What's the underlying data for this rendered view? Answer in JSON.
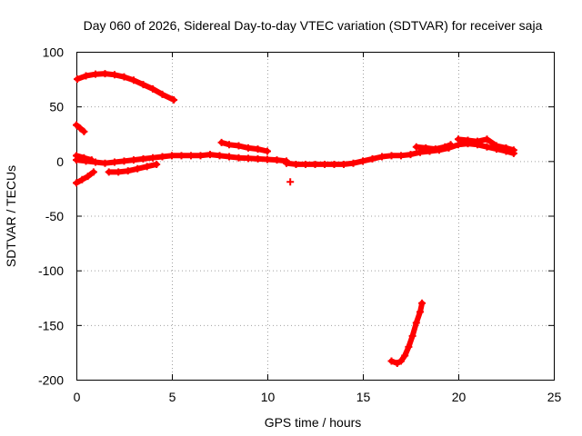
{
  "chart_data": {
    "type": "scatter",
    "title": "Day 060 of 2026, Sidereal Day-to-day VTEC variation (SDTVAR) for receiver saja",
    "xlabel": "GPS time / hours",
    "ylabel": "SDTVAR / TECUs",
    "xlim": [
      0,
      25
    ],
    "ylim": [
      -200,
      100
    ],
    "xticks": [
      0,
      5,
      10,
      15,
      20,
      25
    ],
    "yticks": [
      -200,
      -150,
      -100,
      -50,
      0,
      50,
      100
    ],
    "xtick_labels": [
      "0",
      "5",
      "10",
      "15",
      "20",
      "25"
    ],
    "ytick_labels": [
      "-200",
      "-150",
      "-100",
      "-50",
      "0",
      "50",
      "100"
    ],
    "grid": true,
    "marker_color": "#ff0000",
    "series": [
      {
        "points": [
          [
            0.05,
            75
          ],
          [
            0.5,
            78
          ],
          [
            1.0,
            79.5
          ],
          [
            1.5,
            80
          ],
          [
            2.0,
            79
          ],
          [
            2.5,
            77
          ],
          [
            3.0,
            74
          ],
          [
            3.5,
            70
          ],
          [
            4.0,
            66
          ],
          [
            4.5,
            61
          ],
          [
            5.1,
            56
          ]
        ]
      },
      {
        "points": [
          [
            0.0,
            33
          ],
          [
            0.2,
            30
          ],
          [
            0.4,
            27
          ]
        ]
      },
      {
        "points": [
          [
            0.0,
            -20
          ],
          [
            0.3,
            -17
          ],
          [
            0.6,
            -14
          ],
          [
            0.9,
            -10
          ]
        ]
      },
      {
        "points": [
          [
            1.7,
            -10
          ],
          [
            2.2,
            -10
          ],
          [
            2.7,
            -9
          ],
          [
            3.2,
            -7
          ],
          [
            3.7,
            -5
          ],
          [
            4.2,
            -3
          ]
        ]
      },
      {
        "points": [
          [
            0.0,
            1
          ],
          [
            0.5,
            0
          ],
          [
            1.0,
            -1
          ],
          [
            1.5,
            -2
          ],
          [
            2.0,
            -1
          ],
          [
            2.5,
            0
          ],
          [
            3.0,
            1
          ],
          [
            3.5,
            2
          ],
          [
            4.0,
            3
          ],
          [
            4.5,
            4
          ],
          [
            5.0,
            5
          ],
          [
            5.5,
            5
          ],
          [
            6.0,
            5
          ],
          [
            6.5,
            5
          ],
          [
            7.0,
            6
          ],
          [
            7.5,
            5
          ],
          [
            8.0,
            4
          ],
          [
            8.5,
            3
          ],
          [
            9.0,
            2.5
          ],
          [
            9.5,
            2
          ],
          [
            10.0,
            1.5
          ],
          [
            10.5,
            1
          ],
          [
            11.0,
            0
          ]
        ]
      },
      {
        "points": [
          [
            0.0,
            5
          ],
          [
            0.4,
            3
          ],
          [
            0.8,
            1
          ]
        ]
      },
      {
        "points": [
          [
            7.6,
            17
          ],
          [
            8.0,
            15
          ],
          [
            8.5,
            14
          ],
          [
            9.0,
            12
          ],
          [
            9.5,
            11
          ],
          [
            10.0,
            9
          ]
        ]
      },
      {
        "points": [
          [
            11.0,
            -2
          ],
          [
            11.5,
            -3
          ],
          [
            12.0,
            -3
          ],
          [
            12.5,
            -3
          ],
          [
            13.0,
            -3
          ],
          [
            13.5,
            -3
          ],
          [
            14.0,
            -3
          ],
          [
            14.5,
            -2
          ],
          [
            15.0,
            0
          ],
          [
            15.5,
            2
          ],
          [
            16.0,
            4
          ],
          [
            16.5,
            5
          ],
          [
            17.0,
            5
          ],
          [
            17.5,
            6
          ],
          [
            18.0,
            8
          ],
          [
            18.5,
            9
          ],
          [
            19.0,
            10
          ],
          [
            19.5,
            12
          ],
          [
            20.0,
            15
          ],
          [
            20.5,
            16
          ],
          [
            21.0,
            15
          ],
          [
            21.5,
            13
          ],
          [
            22.0,
            11
          ],
          [
            22.5,
            9
          ],
          [
            22.9,
            7
          ]
        ]
      },
      {
        "points": [
          [
            20.0,
            20
          ],
          [
            20.5,
            19
          ],
          [
            21.0,
            18
          ],
          [
            21.5,
            20
          ],
          [
            22.0,
            14
          ],
          [
            22.5,
            12
          ],
          [
            22.9,
            10
          ]
        ]
      },
      {
        "points": [
          [
            17.8,
            13
          ],
          [
            18.3,
            12
          ],
          [
            18.8,
            11
          ],
          [
            19.3,
            13
          ],
          [
            19.6,
            15
          ]
        ]
      },
      {
        "points": [
          [
            11.2,
            -19
          ]
        ]
      },
      {
        "points": [
          [
            16.5,
            -183
          ],
          [
            16.8,
            -185
          ],
          [
            17.0,
            -183
          ],
          [
            17.2,
            -178
          ],
          [
            17.4,
            -170
          ],
          [
            17.6,
            -160
          ],
          [
            17.8,
            -148
          ],
          [
            18.0,
            -138
          ],
          [
            18.1,
            -130
          ]
        ]
      }
    ]
  }
}
